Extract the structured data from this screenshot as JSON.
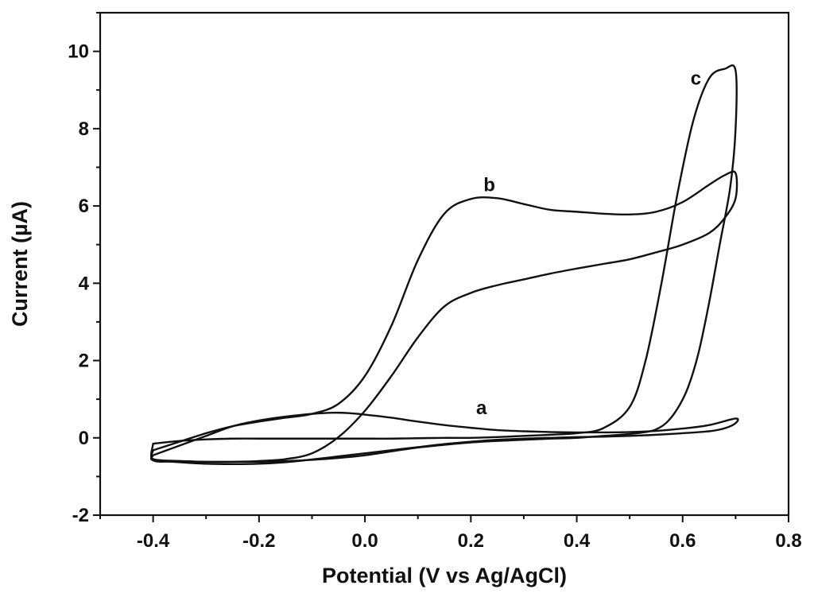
{
  "chart_data": {
    "type": "line",
    "title": "",
    "xlabel": "Potential (V vs Ag/AgCl)",
    "ylabel": "Current (µA)",
    "xlim": [
      -0.5,
      0.8
    ],
    "ylim": [
      -2,
      11
    ],
    "x_ticks": [
      -0.4,
      -0.2,
      0.0,
      0.2,
      0.4,
      0.6,
      0.8
    ],
    "x_tick_labels": [
      "-0.4",
      "-0.2",
      "0.0",
      "0.2",
      "0.4",
      "0.6",
      "0.8"
    ],
    "y_ticks": [
      -2,
      0,
      2,
      4,
      6,
      8,
      10
    ],
    "y_tick_labels": [
      "-2",
      "0",
      "2",
      "4",
      "6",
      "8",
      "10"
    ],
    "grid": false,
    "legend": "none",
    "line_color": "#111111",
    "series": [
      {
        "name": "a",
        "label_at": [
          0.22,
          0.78
        ],
        "x": [
          -0.4,
          -0.35,
          -0.3,
          -0.25,
          -0.2,
          -0.15,
          -0.1,
          -0.06,
          -0.03,
          0.0,
          0.05,
          0.1,
          0.15,
          0.2,
          0.25,
          0.3,
          0.35,
          0.4,
          0.45,
          0.5,
          0.55,
          0.6,
          0.65,
          0.7,
          0.7,
          0.68,
          0.65,
          0.6,
          0.55,
          0.5,
          0.45,
          0.4,
          0.35,
          0.3,
          0.25,
          0.2,
          0.15,
          0.1,
          0.05,
          0.0,
          -0.05,
          -0.1,
          -0.15,
          -0.2,
          -0.25,
          -0.3,
          -0.35,
          -0.4
        ],
        "y": [
          -0.45,
          -0.2,
          0.05,
          0.3,
          0.45,
          0.55,
          0.62,
          0.65,
          0.64,
          0.6,
          0.52,
          0.42,
          0.33,
          0.26,
          0.2,
          0.17,
          0.15,
          0.14,
          0.14,
          0.15,
          0.18,
          0.24,
          0.33,
          0.5,
          0.38,
          0.25,
          0.17,
          0.12,
          0.08,
          0.05,
          0.03,
          0.02,
          0.0,
          -0.02,
          -0.05,
          -0.1,
          -0.16,
          -0.24,
          -0.32,
          -0.4,
          -0.48,
          -0.56,
          -0.63,
          -0.67,
          -0.68,
          -0.67,
          -0.63,
          -0.58
        ]
      },
      {
        "name": "b",
        "label_at": [
          0.235,
          6.55
        ],
        "x": [
          -0.4,
          -0.35,
          -0.3,
          -0.25,
          -0.2,
          -0.15,
          -0.1,
          -0.05,
          0.0,
          0.05,
          0.1,
          0.15,
          0.2,
          0.25,
          0.3,
          0.35,
          0.4,
          0.45,
          0.5,
          0.55,
          0.6,
          0.65,
          0.68,
          0.7,
          0.7,
          0.68,
          0.65,
          0.6,
          0.55,
          0.5,
          0.45,
          0.4,
          0.35,
          0.3,
          0.25,
          0.2,
          0.15,
          0.1,
          0.05,
          0.0,
          -0.05,
          -0.1,
          -0.15,
          -0.2,
          -0.25,
          -0.3,
          -0.35,
          -0.4
        ],
        "y": [
          -0.32,
          -0.1,
          0.12,
          0.3,
          0.42,
          0.52,
          0.62,
          0.88,
          1.6,
          2.9,
          4.6,
          5.8,
          6.18,
          6.2,
          6.05,
          5.9,
          5.85,
          5.8,
          5.78,
          5.85,
          6.1,
          6.55,
          6.8,
          6.85,
          6.2,
          5.7,
          5.3,
          5.0,
          4.8,
          4.62,
          4.5,
          4.38,
          4.25,
          4.1,
          3.95,
          3.75,
          3.4,
          2.6,
          1.6,
          0.7,
          0.02,
          -0.4,
          -0.55,
          -0.6,
          -0.62,
          -0.62,
          -0.6,
          -0.55
        ]
      },
      {
        "name": "c",
        "label_at": [
          0.625,
          9.3
        ],
        "x": [
          -0.4,
          -0.35,
          -0.3,
          -0.25,
          -0.2,
          -0.15,
          -0.1,
          -0.05,
          0.0,
          0.05,
          0.1,
          0.15,
          0.2,
          0.25,
          0.3,
          0.35,
          0.4,
          0.45,
          0.5,
          0.53,
          0.56,
          0.59,
          0.62,
          0.65,
          0.68,
          0.7,
          0.7,
          0.69,
          0.67,
          0.65,
          0.63,
          0.61,
          0.59,
          0.57,
          0.55,
          0.53,
          0.5,
          0.45,
          0.4,
          0.35,
          0.3,
          0.25,
          0.2,
          0.15,
          0.1,
          0.05,
          0.0,
          -0.05,
          -0.1,
          -0.15,
          -0.2,
          -0.25,
          -0.3,
          -0.35,
          -0.4
        ],
        "y": [
          -0.15,
          -0.08,
          -0.04,
          -0.02,
          -0.02,
          -0.02,
          -0.02,
          -0.02,
          -0.02,
          -0.02,
          -0.01,
          0.0,
          0.0,
          0.02,
          0.05,
          0.08,
          0.12,
          0.25,
          0.8,
          2.0,
          4.0,
          6.3,
          8.2,
          9.3,
          9.55,
          9.5,
          8.0,
          6.5,
          5.0,
          3.5,
          2.2,
          1.3,
          0.75,
          0.4,
          0.22,
          0.15,
          0.1,
          0.05,
          0.0,
          -0.02,
          -0.05,
          -0.08,
          -0.12,
          -0.18,
          -0.25,
          -0.35,
          -0.45,
          -0.52,
          -0.57,
          -0.6,
          -0.62,
          -0.62,
          -0.62,
          -0.6,
          -0.58
        ]
      }
    ]
  }
}
